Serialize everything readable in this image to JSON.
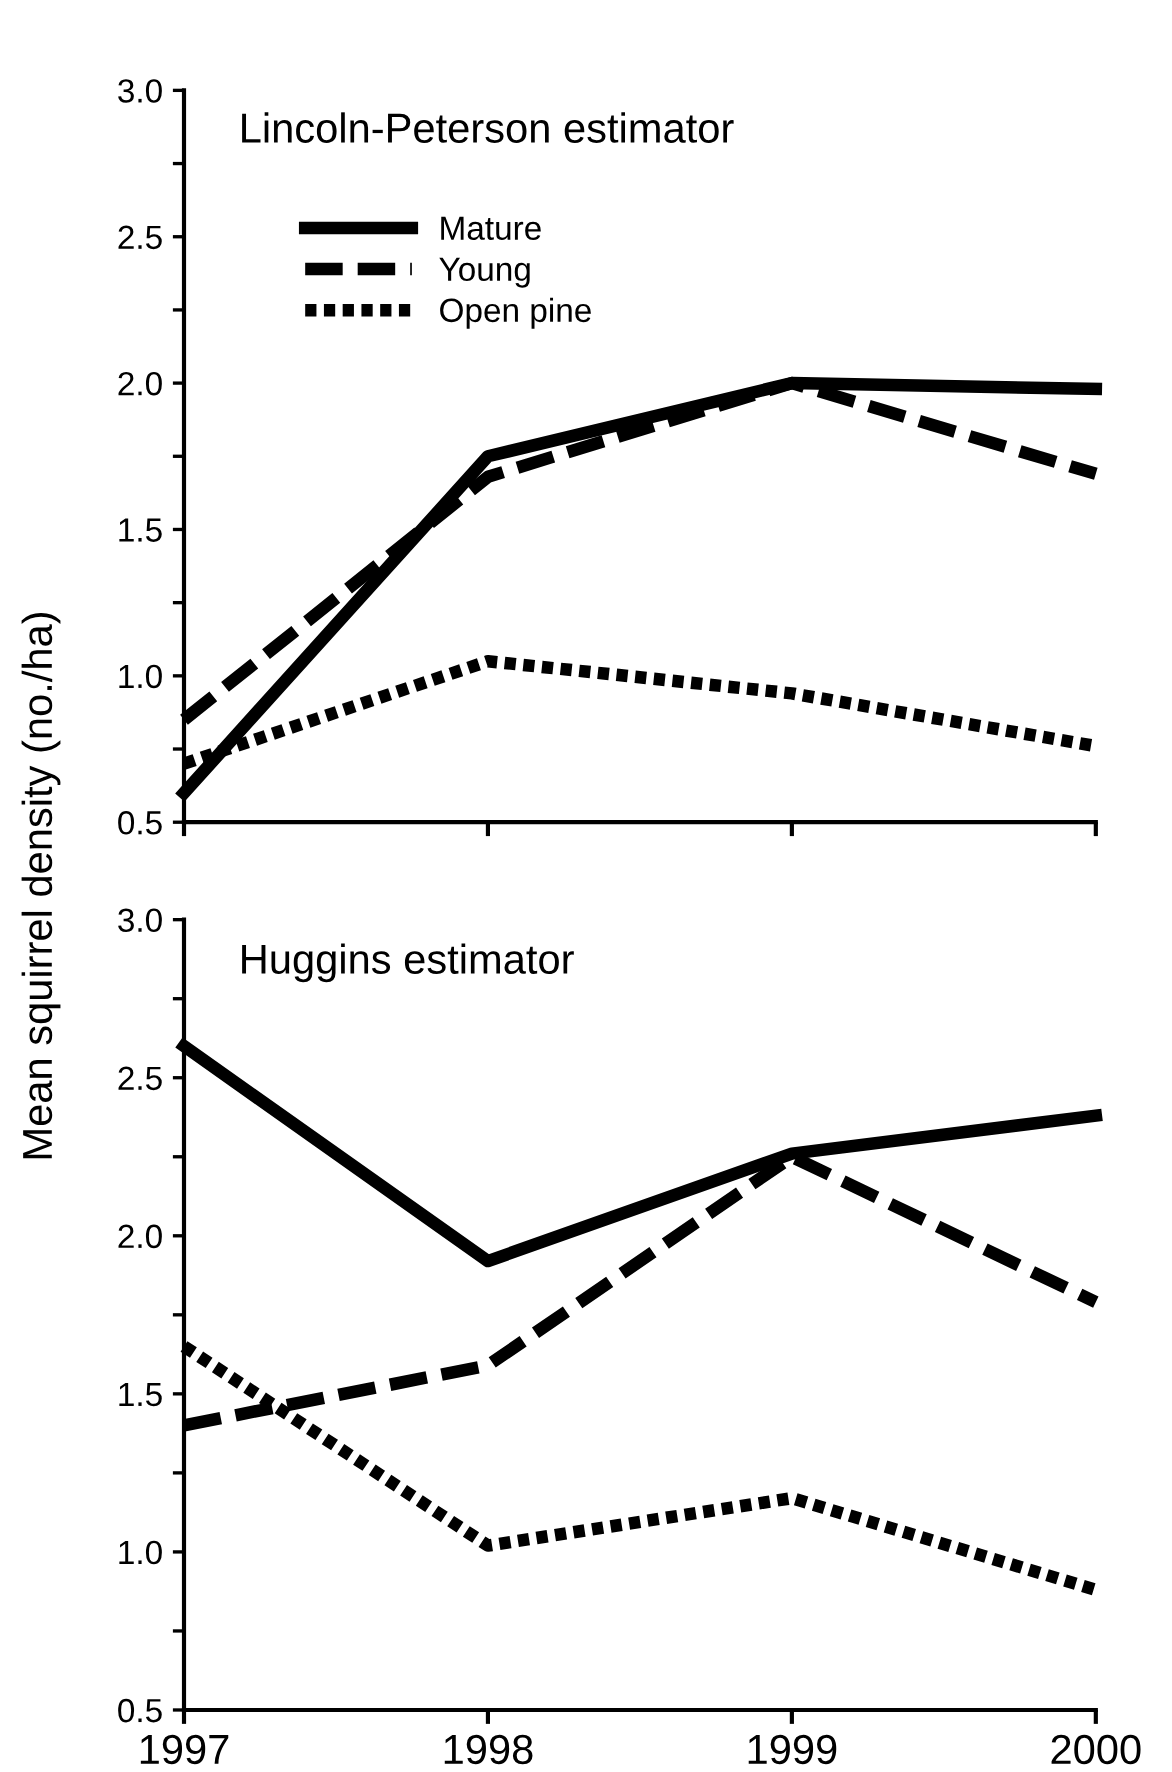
{
  "chart_data": [
    {
      "type": "line",
      "title": "Lincoln-Peterson estimator",
      "ylabel": "Mean squirrel density (no./ha)",
      "x": [
        1997,
        1998,
        1999,
        2000
      ],
      "xlim": [
        1997,
        2000
      ],
      "xticks": [
        {
          "value": 1997,
          "label": null
        },
        {
          "value": 1998,
          "label": null
        },
        {
          "value": 1999,
          "label": null
        },
        {
          "value": 2000,
          "label": null
        }
      ],
      "ylim": [
        0.5,
        3.0
      ],
      "yticks": [
        0.5,
        {
          "value": 0.75,
          "label": null
        },
        {
          "value": 1,
          "label": "1.0"
        },
        {
          "value": 1.25,
          "label": null
        },
        1.5,
        {
          "value": 1.75,
          "label": null
        },
        {
          "value": 2,
          "label": "2.0"
        },
        {
          "value": 2.25,
          "label": null
        },
        2.5,
        {
          "value": 2.75,
          "label": null
        },
        {
          "value": 3,
          "label": "3.0"
        }
      ],
      "tick_labels": "y",
      "grid": false,
      "legend": "top left",
      "series": [
        {
          "name": "Mature",
          "color": "#000000",
          "line_style": "solid",
          "values": [
            0.6,
            1.75,
            2.0,
            1.98
          ]
        },
        {
          "name": "Young",
          "color": "#000000",
          "line_style": "dashed",
          "values": [
            0.85,
            1.68,
            2.0,
            1.69
          ]
        },
        {
          "name": "Open pine",
          "color": "#000000",
          "line_style": "dotted",
          "values": [
            0.7,
            1.05,
            0.94,
            0.76
          ]
        }
      ]
    },
    {
      "type": "line",
      "title": "Huggins estimator",
      "x": [
        1997,
        1998,
        1999,
        2000
      ],
      "xlim": [
        1997,
        2000
      ],
      "xticks": [
        1997,
        1998,
        1999,
        2000
      ],
      "ylim": [
        0.5,
        3.0
      ],
      "yticks": [
        0.5,
        {
          "value": 0.75,
          "label": null
        },
        {
          "value": 1,
          "label": "1.0"
        },
        {
          "value": 1.25,
          "label": null
        },
        1.5,
        {
          "value": 1.75,
          "label": null
        },
        {
          "value": 2,
          "label": "2.0"
        },
        {
          "value": 2.25,
          "label": null
        },
        2.5,
        {
          "value": 2.75,
          "label": null
        },
        {
          "value": 3,
          "label": "3.0"
        }
      ],
      "grid": false,
      "series": [
        {
          "color": "#000000",
          "line_style": "solid",
          "values": [
            2.6,
            1.92,
            2.26,
            2.38
          ]
        },
        {
          "color": "#000000",
          "line_style": "dashed",
          "values": [
            1.4,
            1.59,
            2.25,
            1.79
          ]
        },
        {
          "color": "#000000",
          "line_style": "dotted",
          "values": [
            1.65,
            1.02,
            1.17,
            0.88
          ]
        }
      ]
    }
  ]
}
